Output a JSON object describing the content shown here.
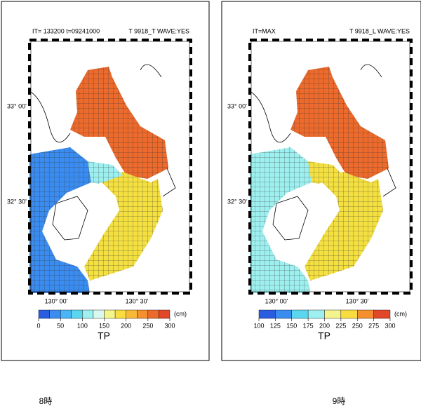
{
  "panels": [
    {
      "header_left": "IT=  133200   t=09241000",
      "header_right": "T 9918_T   WAVE:YES",
      "lat_labels": [
        "33° 00'",
        "32° 30'"
      ],
      "lon_labels": [
        "130° 00'",
        "130° 30'"
      ],
      "colorbar": {
        "ticks": [
          0,
          50,
          100,
          150,
          200,
          250,
          300
        ],
        "colors": [
          "#2a5ce0",
          "#3a8cf0",
          "#4ab4f4",
          "#5ad6f0",
          "#9ef0f0",
          "#d8f8f0",
          "#f4f48c",
          "#f8dc40",
          "#f8b838",
          "#f49030",
          "#ec6a2c",
          "#e04828"
        ],
        "unit": "(cm)",
        "label": "TP"
      },
      "caption": "8時"
    },
    {
      "header_left": "IT=MAX",
      "header_right": "T 9918_L   WAVE:YES",
      "lat_labels": [
        "33° 00'",
        "32° 30'"
      ],
      "lon_labels": [
        "130° 00'",
        "130° 30'"
      ],
      "colorbar": {
        "ticks": [
          100,
          125,
          150,
          175,
          200,
          225,
          250,
          275,
          300
        ],
        "colors": [
          "#2a5ce0",
          "#3a8cf0",
          "#5ad6f0",
          "#9ef0f0",
          "#f4f48c",
          "#f8dc40",
          "#f49030",
          "#e04828"
        ],
        "unit": "(cm)",
        "label": "TP"
      },
      "caption": "9時"
    }
  ]
}
